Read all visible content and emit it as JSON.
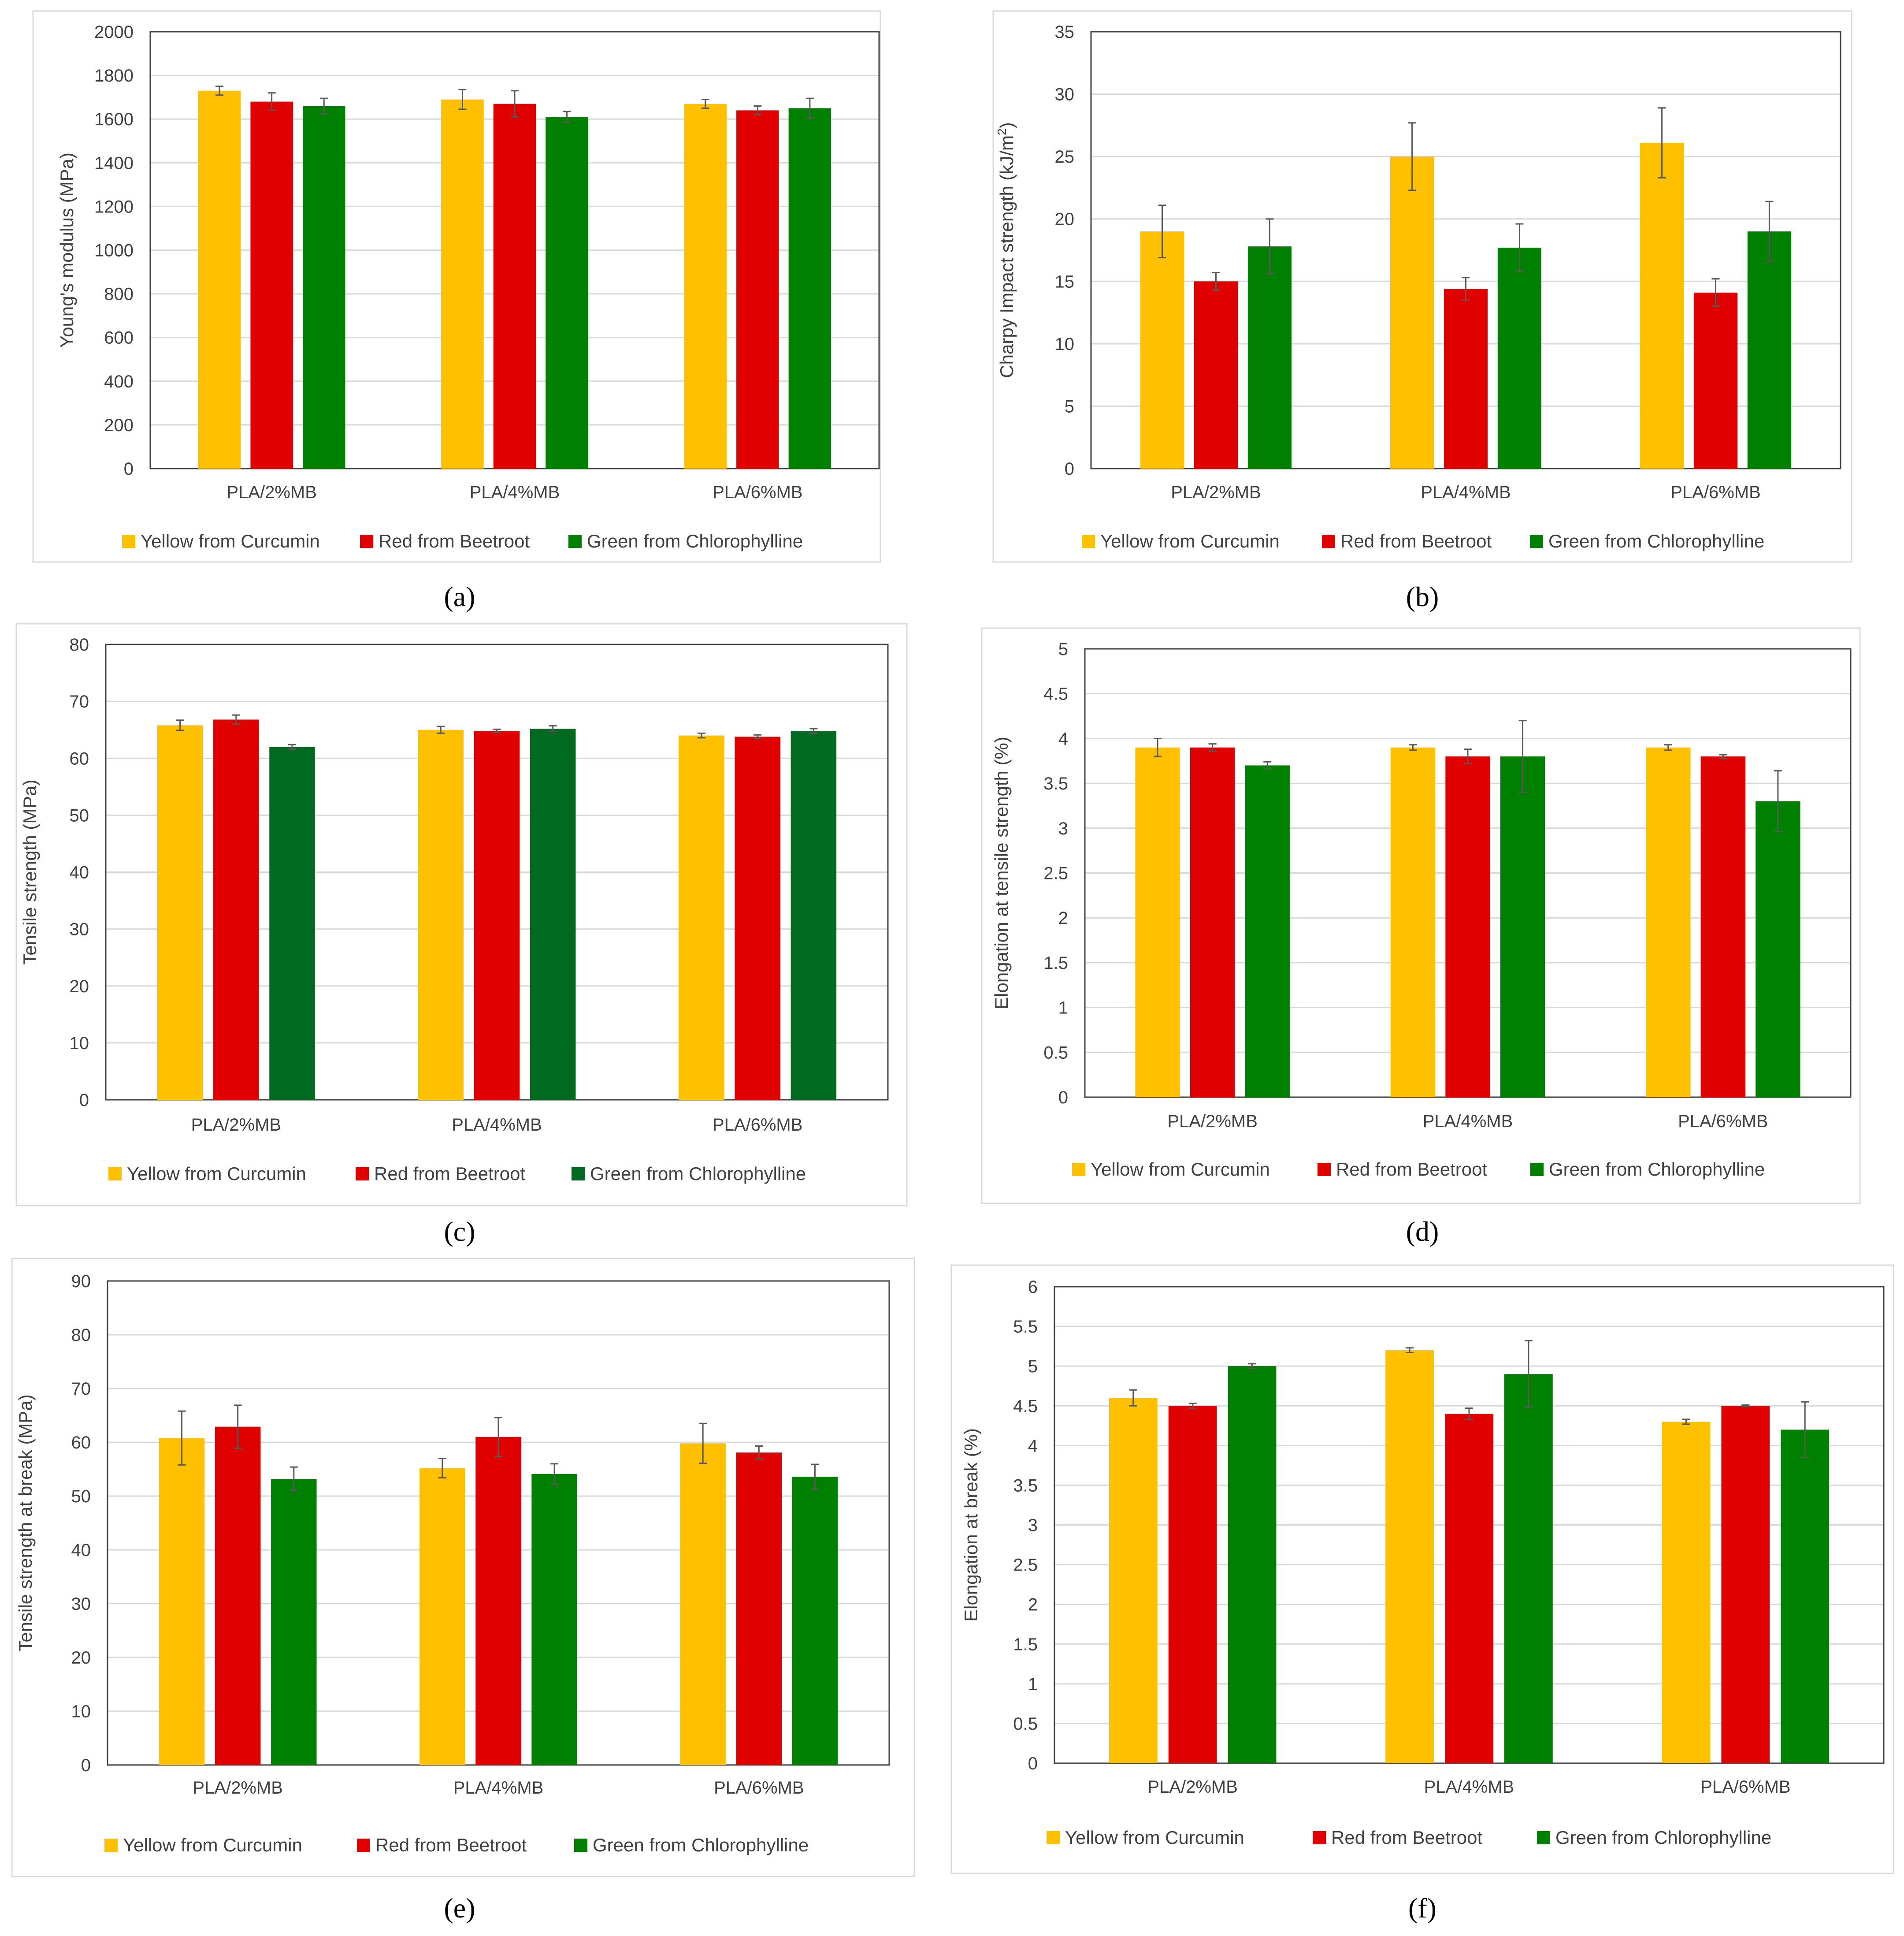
{
  "figure": {
    "series_names": [
      "Yellow from Curcumin",
      "Red from Beetroot",
      "Green from Chlorophylline"
    ],
    "colors": {
      "yellow": "#FFC000",
      "red": "#E00000",
      "green": "#008000",
      "green_dark": "#006A21",
      "grid": "#D9D9D9",
      "axis": "#404040",
      "border": "#D9D9D9",
      "errorbar": "#595959"
    }
  },
  "chart_data": [
    {
      "id": "a",
      "type": "bar",
      "caption": "(a)",
      "categories": [
        "PLA/2%MB",
        "PLA/4%MB",
        "PLA/6%MB"
      ],
      "ylabel": "Young's modulus (MPa)",
      "ylim": [
        0,
        2000
      ],
      "yticks": [
        "0",
        "200",
        "400",
        "600",
        "800",
        "1000",
        "1200",
        "1400",
        "1600",
        "1800",
        "2000"
      ],
      "legend": "bottom",
      "series": [
        {
          "name": "Yellow from Curcumin",
          "values": [
            1730,
            1690,
            1670
          ],
          "errors": [
            20,
            45,
            20
          ]
        },
        {
          "name": "Red from Beetroot",
          "values": [
            1680,
            1670,
            1640
          ],
          "errors": [
            40,
            60,
            20
          ]
        },
        {
          "name": "Green from Chlorophylline",
          "values": [
            1660,
            1610,
            1650
          ],
          "errors": [
            35,
            25,
            45
          ]
        }
      ]
    },
    {
      "id": "b",
      "type": "bar",
      "caption": "(b)",
      "categories": [
        "PLA/2%MB",
        "PLA/4%MB",
        "PLA/6%MB"
      ],
      "ylabel": "Charpy Impact strength (kJ/m",
      "ylabel_sup": "2",
      "ylabel_tail": ")",
      "ylim": [
        0,
        35
      ],
      "yticks": [
        "0",
        "5",
        "10",
        "15",
        "20",
        "25",
        "30",
        "35"
      ],
      "legend": "bottom",
      "series": [
        {
          "name": "Yellow from Curcumin",
          "values": [
            19.0,
            25.0,
            26.1
          ],
          "errors": [
            2.1,
            2.7,
            2.8
          ]
        },
        {
          "name": "Red from Beetroot",
          "values": [
            15.0,
            14.4,
            14.1
          ],
          "errors": [
            0.7,
            0.9,
            1.1
          ]
        },
        {
          "name": "Green from Chlorophylline",
          "values": [
            17.8,
            17.7,
            19.0
          ],
          "errors": [
            2.2,
            1.9,
            2.4
          ]
        }
      ]
    },
    {
      "id": "c",
      "type": "bar",
      "caption": "(c)",
      "categories": [
        "PLA/2%MB",
        "PLA/4%MB",
        "PLA/6%MB"
      ],
      "ylabel": "Tensile strength (MPa)",
      "ylim": [
        0,
        80
      ],
      "yticks": [
        "0",
        "10",
        "20",
        "30",
        "40",
        "50",
        "60",
        "70",
        "80"
      ],
      "legend": "bottom",
      "series": [
        {
          "name": "Yellow from Curcumin",
          "values": [
            65.8,
            65.0,
            64.0
          ],
          "errors": [
            0.9,
            0.6,
            0.4
          ]
        },
        {
          "name": "Red from Beetroot",
          "values": [
            66.8,
            64.8,
            63.8
          ],
          "errors": [
            0.8,
            0.3,
            0.3
          ]
        },
        {
          "name": "Green from Chlorophylline",
          "values": [
            62.0,
            65.2,
            64.8
          ],
          "errors": [
            0.4,
            0.5,
            0.4
          ]
        }
      ]
    },
    {
      "id": "d",
      "type": "bar",
      "caption": "(d)",
      "categories": [
        "PLA/2%MB",
        "PLA/4%MB",
        "PLA/6%MB"
      ],
      "ylabel": "Elongation at tensile strength (%)",
      "ylim": [
        0,
        5
      ],
      "yticks": [
        "0",
        "0.5",
        "1",
        "1.5",
        "2",
        "2.5",
        "3",
        "3.5",
        "4",
        "4.5",
        "5"
      ],
      "legend": "bottom",
      "series": [
        {
          "name": "Yellow from Curcumin",
          "values": [
            3.9,
            3.9,
            3.9
          ],
          "errors": [
            0.1,
            0.03,
            0.03
          ]
        },
        {
          "name": "Red from Beetroot",
          "values": [
            3.9,
            3.8,
            3.8
          ],
          "errors": [
            0.04,
            0.08,
            0.02
          ]
        },
        {
          "name": "Green from Chlorophylline",
          "values": [
            3.7,
            3.8,
            3.3
          ],
          "errors": [
            0.04,
            0.4,
            0.34
          ]
        }
      ]
    },
    {
      "id": "e",
      "type": "bar",
      "caption": "(e)",
      "categories": [
        "PLA/2%MB",
        "PLA/4%MB",
        "PLA/6%MB"
      ],
      "ylabel": "Tensile strength at break (MPa)",
      "ylim": [
        0,
        90
      ],
      "yticks": [
        "0",
        "10",
        "20",
        "30",
        "40",
        "50",
        "60",
        "70",
        "80",
        "90"
      ],
      "legend": "bottom",
      "series": [
        {
          "name": "Yellow from Curcumin",
          "values": [
            60.8,
            55.2,
            59.8
          ],
          "errors": [
            5.0,
            1.8,
            3.7
          ]
        },
        {
          "name": "Red from Beetroot",
          "values": [
            62.9,
            61.0,
            58.1
          ],
          "errors": [
            4.0,
            3.6,
            1.2
          ]
        },
        {
          "name": "Green from Chlorophylline",
          "values": [
            53.2,
            54.1,
            53.6
          ],
          "errors": [
            2.2,
            1.9,
            2.3
          ]
        }
      ]
    },
    {
      "id": "f",
      "type": "bar",
      "caption": "(f)",
      "categories": [
        "PLA/2%MB",
        "PLA/4%MB",
        "PLA/6%MB"
      ],
      "ylabel": "Elongation at break (%)",
      "ylim": [
        0,
        6
      ],
      "yticks": [
        "0",
        "0.5",
        "1",
        "1.5",
        "2",
        "2.5",
        "3",
        "3.5",
        "4",
        "4.5",
        "5",
        "5.5",
        "6"
      ],
      "legend": "bottom",
      "series": [
        {
          "name": "Yellow from Curcumin",
          "values": [
            4.6,
            5.2,
            4.3
          ],
          "errors": [
            0.1,
            0.03,
            0.03
          ]
        },
        {
          "name": "Red from Beetroot",
          "values": [
            4.5,
            4.4,
            4.5
          ],
          "errors": [
            0.03,
            0.07,
            0.01
          ]
        },
        {
          "name": "Green from Chlorophylline",
          "values": [
            5.0,
            4.9,
            4.2
          ],
          "errors": [
            0.03,
            0.42,
            0.35
          ]
        }
      ]
    }
  ]
}
